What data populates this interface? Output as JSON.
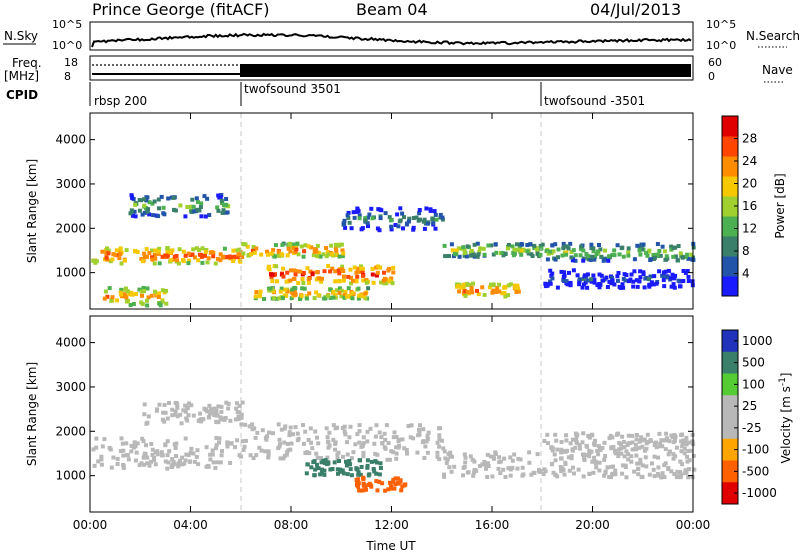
{
  "header": {
    "station": "Prince George (fitACF)",
    "beam": "Beam 04",
    "date": "04/Jul/2013"
  },
  "top_panels": {
    "nsky_label": "N.Sky",
    "nsky_ticks": [
      "10^5",
      "10^0"
    ],
    "nsearch_label": "N.Search",
    "nsearch_ticks": [
      "10^5",
      "10^0"
    ],
    "freq_label": "Freq.",
    "freq_unit": "[MHz]",
    "freq_ticks": [
      "18",
      "8"
    ],
    "nave_label": "Nave",
    "nave_ticks": [
      "60",
      "0"
    ],
    "cpid_label": "CPID",
    "cpid_segments": [
      {
        "label": "rbsp 200",
        "start_hour": 0
      },
      {
        "label": "twofsound 3501",
        "start_hour": 6
      },
      {
        "label": "twofsound -3501",
        "start_hour": 18
      }
    ]
  },
  "chart_data": [
    {
      "type": "heatmap",
      "title": "",
      "xlabel": "",
      "ylabel": "Slant Range [km]",
      "xlim": [
        0,
        24
      ],
      "ylim": [
        180,
        4600
      ],
      "x_ticks": [
        "00:00",
        "04:00",
        "08:00",
        "12:00",
        "16:00",
        "20:00",
        "00:00"
      ],
      "y_ticks": [
        1000,
        2000,
        3000,
        4000
      ],
      "colorbar": {
        "label": "Power [dB]",
        "ticks": [
          4,
          8,
          12,
          16,
          20,
          24,
          28
        ],
        "colors": [
          "#1a1aff",
          "#2255aa",
          "#3a7f6a",
          "#4caf50",
          "#a0d030",
          "#f5c800",
          "#ff8c00",
          "#ff4500",
          "#e00000"
        ]
      },
      "echo_regions": [
        {
          "start_hour": 0.0,
          "end_hour": 6.0,
          "range_low_km": 1250,
          "range_high_km": 1600,
          "power_db": 27
        },
        {
          "start_hour": 0.5,
          "end_hour": 3.0,
          "range_low_km": 300,
          "range_high_km": 700,
          "power_db": 24
        },
        {
          "start_hour": 1.5,
          "end_hour": 5.5,
          "range_low_km": 2300,
          "range_high_km": 2800,
          "power_db": 14
        },
        {
          "start_hour": 6.0,
          "end_hour": 10.0,
          "range_low_km": 1400,
          "range_high_km": 1700,
          "power_db": 25
        },
        {
          "start_hour": 7.0,
          "end_hour": 12.0,
          "range_low_km": 800,
          "range_high_km": 1200,
          "power_db": 29
        },
        {
          "start_hour": 6.5,
          "end_hour": 11.0,
          "range_low_km": 450,
          "range_high_km": 700,
          "power_db": 24
        },
        {
          "start_hour": 10.0,
          "end_hour": 14.0,
          "range_low_km": 2000,
          "range_high_km": 2500,
          "power_db": 10
        },
        {
          "start_hour": 14.0,
          "end_hour": 18.0,
          "range_low_km": 1400,
          "range_high_km": 1700,
          "power_db": 18
        },
        {
          "start_hour": 14.5,
          "end_hour": 17.0,
          "range_low_km": 500,
          "range_high_km": 800,
          "power_db": 26
        },
        {
          "start_hour": 18.0,
          "end_hour": 24.0,
          "range_low_km": 1300,
          "range_high_km": 1700,
          "power_db": 16
        },
        {
          "start_hour": 18.0,
          "end_hour": 24.0,
          "range_low_km": 700,
          "range_high_km": 1100,
          "power_db": 6
        }
      ]
    },
    {
      "type": "heatmap",
      "title": "",
      "xlabel": "Time UT",
      "ylabel": "Slant Range [km]",
      "xlim": [
        0,
        24
      ],
      "ylim": [
        180,
        4600
      ],
      "x_ticks": [
        "00:00",
        "04:00",
        "08:00",
        "12:00",
        "16:00",
        "20:00",
        "00:00"
      ],
      "y_ticks": [
        1000,
        2000,
        3000,
        4000
      ],
      "colorbar": {
        "label": "Velocity [m s",
        "label_superscript": "-1",
        "ticks": [
          "1000",
          "500",
          "100",
          "25",
          "-25",
          "-100",
          "-500",
          "-1000"
        ],
        "colors": [
          "#2233bb",
          "#3a7f6a",
          "#55cc33",
          "#b8b8b8",
          "#b8b8b8",
          "#ffa500",
          "#ff6000",
          "#e00000"
        ]
      },
      "echo_regions": [
        {
          "start_hour": 0.0,
          "end_hour": 6.0,
          "range_low_km": 1200,
          "range_high_km": 1900,
          "velocity": 0
        },
        {
          "start_hour": 2.0,
          "end_hour": 6.0,
          "range_low_km": 2200,
          "range_high_km": 2700,
          "velocity": 0
        },
        {
          "start_hour": 6.0,
          "end_hour": 14.0,
          "range_low_km": 1400,
          "range_high_km": 2200,
          "velocity": 0
        },
        {
          "start_hour": 8.5,
          "end_hour": 11.5,
          "range_low_km": 1050,
          "range_high_km": 1400,
          "velocity": 150
        },
        {
          "start_hour": 10.5,
          "end_hour": 12.5,
          "range_low_km": 700,
          "range_high_km": 1000,
          "velocity": -150
        },
        {
          "start_hour": 14.0,
          "end_hour": 24.0,
          "range_low_km": 1000,
          "range_high_km": 1600,
          "velocity": 0
        },
        {
          "start_hour": 18.0,
          "end_hour": 24.0,
          "range_low_km": 1600,
          "range_high_km": 2000,
          "velocity": 0
        }
      ]
    }
  ],
  "xaxis_title": "Time UT"
}
